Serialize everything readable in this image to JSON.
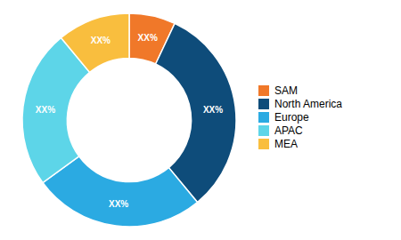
{
  "chart_data": {
    "type": "donut",
    "categories": [
      "SAM",
      "North America",
      "Europe",
      "APAC",
      "MEA"
    ],
    "values": [
      7,
      32,
      26,
      24,
      11
    ],
    "value_labels": [
      "XX%",
      "XX%",
      "XX%",
      "XX%",
      "XX%"
    ],
    "colors": [
      "#f07829",
      "#0e4c7a",
      "#2baae2",
      "#5dd5e8",
      "#f9be3e"
    ],
    "legend": "right"
  }
}
